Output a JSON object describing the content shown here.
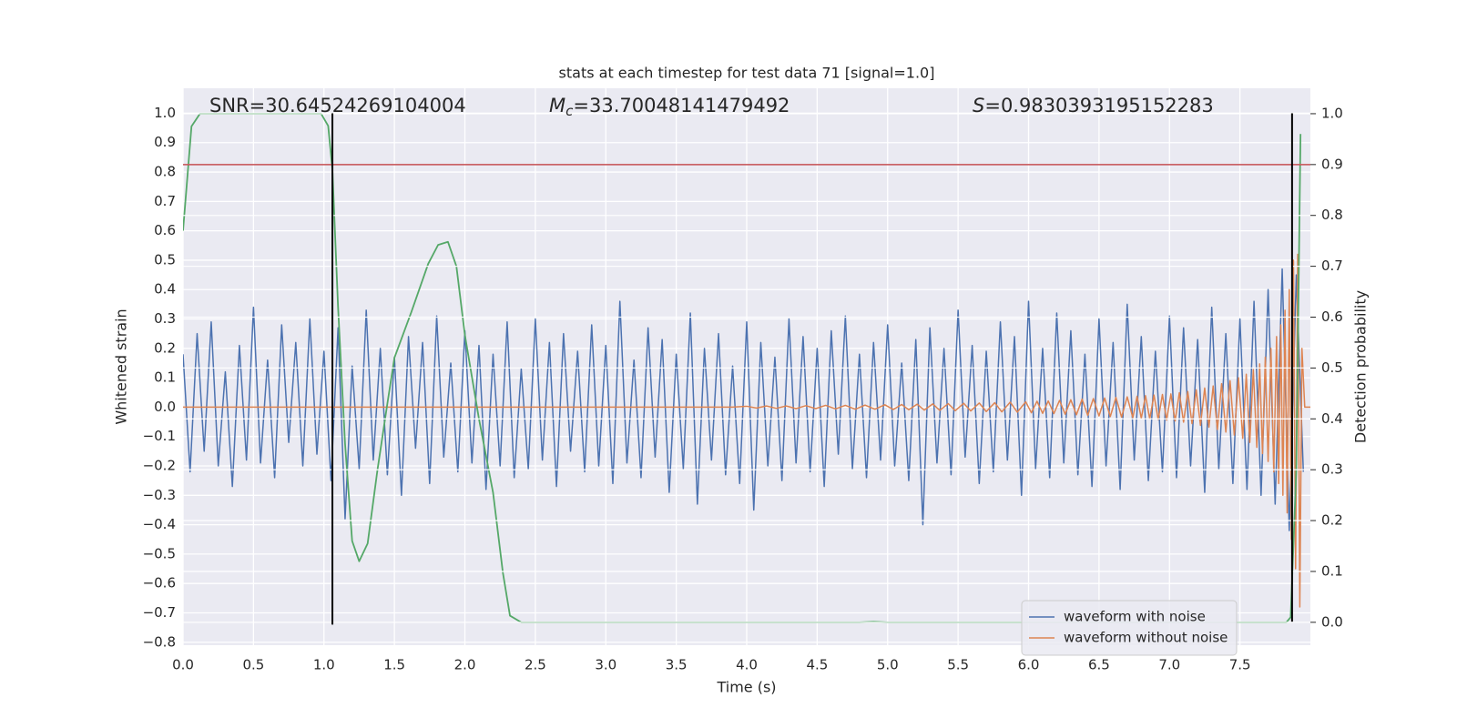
{
  "chart_data": {
    "type": "line",
    "title": "stats at each timestep for test data 71 [signal=1.0]",
    "x_label": "Time (s)",
    "y_label": "Whitened strain",
    "y2_label": "Detection probability",
    "xlim": [
      0,
      8.0
    ],
    "ylim": [
      -0.81,
      1.085
    ],
    "y2lim": [
      -0.045,
      1.05
    ],
    "xticks": [
      {
        "value": 0,
        "label": "0.0"
      },
      0.5,
      {
        "value": 1,
        "label": "1.0"
      },
      1.5,
      {
        "value": 2,
        "label": "2.0"
      },
      2.5,
      {
        "value": 3,
        "label": "3.0"
      },
      3.5,
      {
        "value": 4,
        "label": "4.0"
      },
      4.5,
      {
        "value": 5,
        "label": "5.0"
      },
      5.5,
      {
        "value": 6,
        "label": "6.0"
      },
      6.5,
      {
        "value": 7,
        "label": "7.0"
      },
      7.5
    ],
    "yticks": [
      {
        "value": -0.8,
        "label": "−0.8"
      },
      {
        "value": -0.7,
        "label": "−0.7"
      },
      {
        "value": -0.6,
        "label": "−0.6"
      },
      {
        "value": -0.5,
        "label": "−0.5"
      },
      {
        "value": -0.4,
        "label": "−0.4"
      },
      {
        "value": -0.3,
        "label": "−0.3"
      },
      {
        "value": -0.2,
        "label": "−0.2"
      },
      {
        "value": -0.1,
        "label": "−0.1"
      },
      {
        "value": 0,
        "label": "0.0"
      },
      0.1,
      0.2,
      0.3,
      0.4,
      0.5,
      0.6,
      0.7,
      0.8,
      0.9,
      {
        "value": 1,
        "label": "1.0"
      }
    ],
    "y2ticks": [
      {
        "value": 0,
        "label": "0.0"
      },
      0.1,
      0.2,
      0.3,
      0.4,
      0.5,
      0.6,
      0.7,
      0.8,
      0.9,
      {
        "value": 1,
        "label": "1.0"
      }
    ],
    "grid": true,
    "background": "#eaeaf2",
    "legend": "lower right",
    "series": [
      {
        "name": "waveform with noise",
        "color": "#4c72b0",
        "x": [
          0,
          0.05,
          0.1,
          0.15,
          0.2,
          0.25,
          0.3,
          0.35,
          0.4,
          0.45,
          0.5,
          0.55,
          0.6,
          0.65,
          0.7,
          0.75,
          0.8,
          0.85,
          0.9,
          0.95,
          1.0,
          1.05,
          1.1,
          1.15,
          1.2,
          1.25,
          1.3,
          1.35,
          1.4,
          1.45,
          1.5,
          1.55,
          1.6,
          1.65,
          1.7,
          1.75,
          1.8,
          1.85,
          1.9,
          1.95,
          2.0,
          2.05,
          2.1,
          2.15,
          2.2,
          2.25,
          2.3,
          2.35,
          2.4,
          2.45,
          2.5,
          2.55,
          2.6,
          2.65,
          2.7,
          2.75,
          2.8,
          2.85,
          2.9,
          2.95,
          3.0,
          3.05,
          3.1,
          3.15,
          3.2,
          3.25,
          3.3,
          3.35,
          3.4,
          3.45,
          3.5,
          3.55,
          3.6,
          3.65,
          3.7,
          3.75,
          3.8,
          3.85,
          3.9,
          3.95,
          4.0,
          4.05,
          4.1,
          4.15,
          4.2,
          4.25,
          4.3,
          4.35,
          4.4,
          4.45,
          4.5,
          4.55,
          4.6,
          4.65,
          4.7,
          4.75,
          4.8,
          4.85,
          4.9,
          4.95,
          5.0,
          5.05,
          5.1,
          5.15,
          5.2,
          5.25,
          5.3,
          5.35,
          5.4,
          5.45,
          5.5,
          5.55,
          5.6,
          5.65,
          5.7,
          5.75,
          5.8,
          5.85,
          5.9,
          5.95,
          6.0,
          6.05,
          6.1,
          6.15,
          6.2,
          6.25,
          6.3,
          6.35,
          6.4,
          6.45,
          6.5,
          6.55,
          6.6,
          6.65,
          6.7,
          6.75,
          6.8,
          6.85,
          6.9,
          6.95,
          7.0,
          7.05,
          7.1,
          7.15,
          7.2,
          7.25,
          7.3,
          7.35,
          7.4,
          7.45,
          7.5,
          7.55,
          7.6,
          7.65,
          7.7,
          7.75,
          7.8,
          7.85,
          7.9,
          7.95
        ],
        "values": [
          0.18,
          -0.22,
          0.25,
          -0.15,
          0.29,
          -0.2,
          0.12,
          -0.27,
          0.21,
          -0.18,
          0.34,
          -0.19,
          0.16,
          -0.24,
          0.28,
          -0.12,
          0.22,
          -0.2,
          0.3,
          -0.16,
          0.19,
          -0.25,
          0.27,
          -0.38,
          0.14,
          -0.21,
          0.33,
          -0.18,
          0.2,
          -0.23,
          0.17,
          -0.3,
          0.24,
          -0.14,
          0.22,
          -0.26,
          0.31,
          -0.17,
          0.15,
          -0.22,
          0.26,
          -0.19,
          0.21,
          -0.28,
          0.18,
          -0.2,
          0.29,
          -0.24,
          0.13,
          -0.21,
          0.3,
          -0.18,
          0.22,
          -0.27,
          0.25,
          -0.15,
          0.19,
          -0.22,
          0.28,
          -0.2,
          0.21,
          -0.26,
          0.36,
          -0.19,
          0.16,
          -0.24,
          0.27,
          -0.17,
          0.23,
          -0.29,
          0.18,
          -0.21,
          0.32,
          -0.33,
          0.2,
          -0.18,
          0.25,
          -0.23,
          0.14,
          -0.26,
          0.29,
          -0.35,
          0.22,
          -0.2,
          0.17,
          -0.25,
          0.3,
          -0.19,
          0.24,
          -0.22,
          0.2,
          -0.27,
          0.26,
          -0.16,
          0.31,
          -0.21,
          0.18,
          -0.24,
          0.22,
          -0.18,
          0.28,
          -0.2,
          0.15,
          -0.25,
          0.23,
          -0.4,
          0.27,
          -0.19,
          0.2,
          -0.23,
          0.33,
          -0.17,
          0.21,
          -0.26,
          0.19,
          -0.22,
          0.29,
          -0.18,
          0.24,
          -0.3,
          0.36,
          -0.21,
          0.2,
          -0.24,
          0.32,
          -0.19,
          0.26,
          -0.23,
          0.18,
          -0.27,
          0.3,
          -0.2,
          0.22,
          -0.28,
          0.35,
          -0.18,
          0.24,
          -0.25,
          0.19,
          -0.22,
          0.31,
          -0.24,
          0.27,
          -0.2,
          0.23,
          -0.29,
          0.34,
          -0.21,
          0.25,
          -0.26,
          0.3,
          -0.28,
          0.36,
          -0.3,
          0.4,
          -0.33,
          0.47,
          -0.42,
          0.45,
          -0.22
        ]
      },
      {
        "name": "waveform without noise",
        "color": "#dd8452",
        "x": [
          0,
          3.9,
          4.0,
          4.07,
          4.14,
          4.21,
          4.28,
          4.35,
          4.42,
          4.49,
          4.56,
          4.63,
          4.7,
          4.77,
          4.84,
          4.91,
          4.98,
          5.04,
          5.1,
          5.15,
          5.21,
          5.26,
          5.32,
          5.37,
          5.43,
          5.48,
          5.54,
          5.59,
          5.65,
          5.7,
          5.76,
          5.81,
          5.87,
          5.92,
          5.98,
          6.02,
          6.06,
          6.1,
          6.14,
          6.18,
          6.22,
          6.26,
          6.3,
          6.34,
          6.38,
          6.42,
          6.46,
          6.5,
          6.54,
          6.58,
          6.62,
          6.66,
          6.7,
          6.74,
          6.77,
          6.8,
          6.83,
          6.86,
          6.89,
          6.92,
          6.95,
          6.98,
          7.01,
          7.04,
          7.07,
          7.1,
          7.13,
          7.16,
          7.19,
          7.22,
          7.25,
          7.28,
          7.31,
          7.34,
          7.37,
          7.4,
          7.43,
          7.46,
          7.49,
          7.52,
          7.545,
          7.57,
          7.595,
          7.62,
          7.64,
          7.66,
          7.68,
          7.7,
          7.72,
          7.74,
          7.76,
          7.775,
          7.79,
          7.805,
          7.82,
          7.835,
          7.85,
          7.865,
          7.88,
          7.895,
          7.91,
          7.925,
          7.94,
          7.96,
          8.0
        ],
        "values": [
          0,
          0,
          0.003,
          -0.003,
          0.004,
          -0.004,
          0.004,
          -0.005,
          0.005,
          -0.005,
          0.006,
          -0.006,
          0.006,
          -0.007,
          0.007,
          -0.007,
          0.008,
          -0.008,
          0.009,
          -0.009,
          0.01,
          -0.01,
          0.011,
          -0.011,
          0.012,
          -0.012,
          0.013,
          -0.013,
          0.014,
          -0.015,
          0.015,
          -0.016,
          0.017,
          -0.017,
          0.018,
          -0.019,
          0.02,
          -0.021,
          0.021,
          -0.022,
          0.023,
          -0.024,
          0.025,
          -0.026,
          0.027,
          -0.028,
          0.029,
          -0.03,
          0.031,
          -0.032,
          0.033,
          -0.034,
          0.035,
          -0.036,
          0.037,
          -0.038,
          0.039,
          -0.04,
          0.041,
          -0.042,
          0.043,
          -0.044,
          0.045,
          -0.047,
          0.049,
          -0.051,
          0.053,
          -0.056,
          0.059,
          -0.062,
          0.065,
          -0.068,
          0.072,
          -0.076,
          0.08,
          -0.085,
          0.09,
          -0.095,
          0.1,
          -0.106,
          0.112,
          -0.12,
          0.128,
          -0.137,
          0.147,
          -0.158,
          0.17,
          -0.185,
          0.2,
          -0.22,
          0.24,
          -0.26,
          0.28,
          -0.3,
          0.33,
          -0.36,
          0.4,
          -0.45,
          0.5,
          -0.55,
          0.52,
          -0.68,
          0.2,
          0,
          0
        ]
      },
      {
        "color": "#55a868",
        "axis": "y2",
        "x": [
          0,
          0.06,
          0.12,
          0.25,
          0.5,
          0.75,
          0.98,
          1.03,
          1.06,
          1.1,
          1.15,
          1.2,
          1.25,
          1.31,
          1.38,
          1.45,
          1.5,
          1.62,
          1.74,
          1.81,
          1.88,
          1.94,
          2.0,
          2.1,
          2.2,
          2.27,
          2.32,
          2.4,
          4.8,
          4.9,
          5.0,
          7.83,
          7.86,
          7.9,
          7.93
        ],
        "values": [
          0.77,
          0.975,
          1.0,
          1.0,
          1.0,
          1.0,
          1.0,
          0.976,
          0.89,
          0.62,
          0.35,
          0.16,
          0.12,
          0.155,
          0.3,
          0.43,
          0.52,
          0.61,
          0.705,
          0.742,
          0.748,
          0.7,
          0.565,
          0.4,
          0.255,
          0.097,
          0.013,
          0.0,
          0.0,
          0.001,
          0.0,
          0.0,
          0.01,
          0.3,
          0.96
        ]
      }
    ],
    "vlines": [
      {
        "x": 1.06,
        "ymin": -0.74,
        "ymax": 1.0,
        "color": "#000000"
      },
      {
        "x": 7.87,
        "ymin": -0.73,
        "ymax": 1.0,
        "color": "#000000"
      }
    ],
    "threshold": {
      "y2": 0.9,
      "color": "#c44e52"
    },
    "annotations": [
      {
        "text": "SNR=30.64524269104004"
      },
      {
        "symbol": "M",
        "subscript": "c",
        "text": "=33.70048141479492"
      },
      {
        "symbol": "S",
        "text": "=0.9830393195152283"
      }
    ]
  }
}
